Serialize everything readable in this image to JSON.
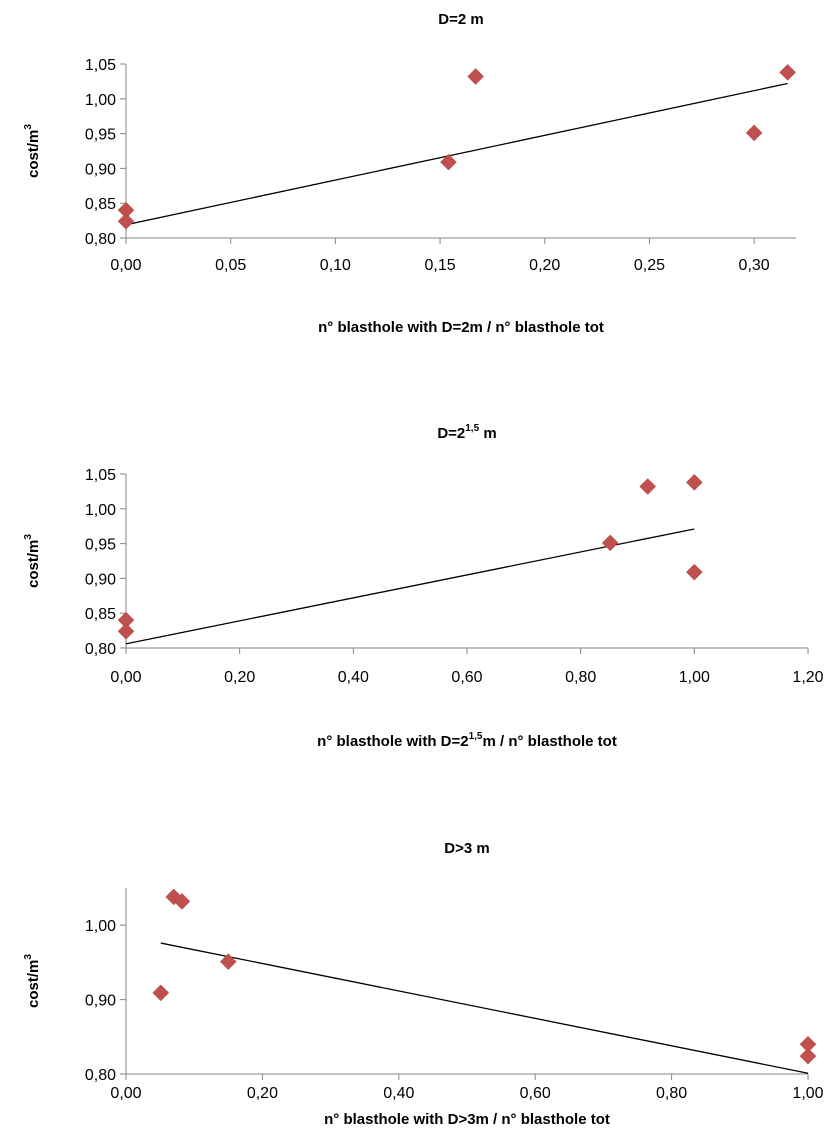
{
  "chart_data": [
    {
      "type": "scatter",
      "title": {
        "pre": "D=2 m",
        "sup": "",
        "post": ""
      },
      "xlabel": {
        "pre": "n° blasthole with D=2m / n° blasthole tot",
        "sup": "",
        "post": ""
      },
      "ylabel": {
        "pre": "cost/m",
        "sup": "3",
        "post": ""
      },
      "xlim": [
        0,
        0.32
      ],
      "ylim": [
        0.8,
        1.05
      ],
      "xticks": [
        0,
        0.05,
        0.1,
        0.15,
        0.2,
        0.25,
        0.3
      ],
      "xtick_labels": [
        "0,00",
        "0,05",
        "0,10",
        "0,15",
        "0,20",
        "0,25",
        "0,30"
      ],
      "yticks": [
        0.8,
        0.85,
        0.9,
        0.95,
        1.0,
        1.05
      ],
      "ytick_labels": [
        "0,80",
        "0,85",
        "0,90",
        "0,95",
        "1,00",
        "1,05"
      ],
      "points": [
        {
          "x": 0.0,
          "y": 0.84
        },
        {
          "x": 0.0,
          "y": 0.824
        },
        {
          "x": 0.154,
          "y": 0.909
        },
        {
          "x": 0.167,
          "y": 1.032
        },
        {
          "x": 0.3,
          "y": 0.951
        },
        {
          "x": 0.316,
          "y": 1.038
        }
      ],
      "trendline": {
        "x": [
          0,
          0.316
        ],
        "y": [
          0.819,
          1.022
        ]
      }
    },
    {
      "type": "scatter",
      "title": {
        "pre": "D=2",
        "sup": "1,5",
        "post": " m"
      },
      "xlabel": {
        "pre": "n° blasthole with D=2",
        "sup": "1,5",
        "post": "m / n° blasthole tot"
      },
      "ylabel": {
        "pre": "cost/m",
        "sup": "3",
        "post": ""
      },
      "xlim": [
        0,
        1.2
      ],
      "ylim": [
        0.8,
        1.05
      ],
      "xticks": [
        0,
        0.2,
        0.4,
        0.6,
        0.8,
        1.0,
        1.2
      ],
      "xtick_labels": [
        "0,00",
        "0,20",
        "0,40",
        "0,60",
        "0,80",
        "1,00",
        "1,20"
      ],
      "yticks": [
        0.8,
        0.85,
        0.9,
        0.95,
        1.0,
        1.05
      ],
      "ytick_labels": [
        "0,80",
        "0,85",
        "0,90",
        "0,95",
        "1,00",
        "1,05"
      ],
      "points": [
        {
          "x": 0.0,
          "y": 0.84
        },
        {
          "x": 0.0,
          "y": 0.824
        },
        {
          "x": 0.852,
          "y": 0.951
        },
        {
          "x": 0.918,
          "y": 1.032
        },
        {
          "x": 1.0,
          "y": 1.038
        },
        {
          "x": 1.0,
          "y": 0.909
        }
      ],
      "trendline": {
        "x": [
          0,
          1.0
        ],
        "y": [
          0.806,
          0.971
        ]
      }
    },
    {
      "type": "scatter",
      "title": {
        "pre": "D>3 m",
        "sup": "",
        "post": ""
      },
      "xlabel": {
        "pre": "n° blasthole with D>3m / n° blasthole tot",
        "sup": "",
        "post": ""
      },
      "ylabel": {
        "pre": "cost/m",
        "sup": "3",
        "post": ""
      },
      "xlim": [
        0,
        1.0
      ],
      "ylim": [
        0.8,
        1.05
      ],
      "xticks": [
        0,
        0.2,
        0.4,
        0.6,
        0.8,
        1.0
      ],
      "xtick_labels": [
        "0,00",
        "0,20",
        "0,40",
        "0,60",
        "0,80",
        "1,00"
      ],
      "yticks": [
        0.8,
        0.9,
        1.0
      ],
      "ytick_labels": [
        "0,80",
        "0,90",
        "1,00"
      ],
      "points": [
        {
          "x": 0.051,
          "y": 0.909
        },
        {
          "x": 0.07,
          "y": 1.038
        },
        {
          "x": 0.082,
          "y": 1.032
        },
        {
          "x": 0.15,
          "y": 0.951
        },
        {
          "x": 1.0,
          "y": 0.84
        },
        {
          "x": 1.0,
          "y": 0.824
        }
      ],
      "trendline": {
        "x": [
          0.051,
          1.0
        ],
        "y": [
          0.976,
          0.801
        ]
      }
    }
  ]
}
